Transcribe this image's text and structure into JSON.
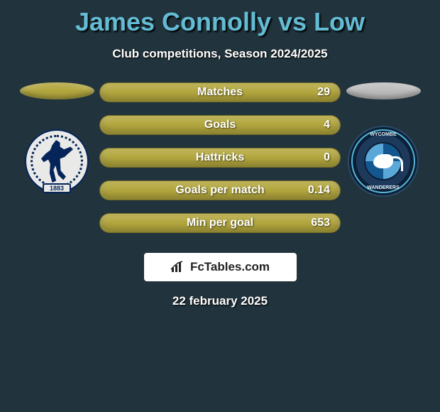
{
  "title": "James Connolly vs Low",
  "subtitle": "Club competitions, Season 2024/2025",
  "date": "22 february 2025",
  "logo_text": "FcTables.com",
  "colors": {
    "player1_bar": "#b3a73e",
    "player2_bar": "#bdbdbd",
    "player1_ellipse": "#b3a73e",
    "player2_ellipse": "#bdbdbd",
    "background": "#21333c",
    "title_color": "#63bcd4"
  },
  "crest_left_year": "1883",
  "crest_right_top": "WYCOMBE",
  "crest_right_bottom": "WANDERERS",
  "stats": [
    {
      "label": "Matches",
      "p1": "",
      "p2": "29",
      "p1_pct": 0,
      "p2_pct": 100
    },
    {
      "label": "Goals",
      "p1": "",
      "p2": "4",
      "p1_pct": 0,
      "p2_pct": 100
    },
    {
      "label": "Hattricks",
      "p1": "",
      "p2": "0",
      "p1_pct": 0,
      "p2_pct": 100
    },
    {
      "label": "Goals per match",
      "p1": "",
      "p2": "0.14",
      "p1_pct": 0,
      "p2_pct": 100
    },
    {
      "label": "Min per goal",
      "p1": "",
      "p2": "653",
      "p1_pct": 0,
      "p2_pct": 100
    }
  ]
}
